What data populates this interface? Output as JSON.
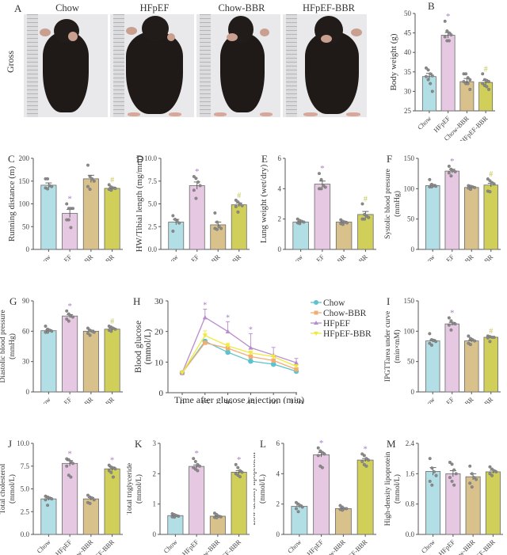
{
  "colors": {
    "Chow": "#b2dfe6",
    "HFpEF": "#e6c8e2",
    "Chow-BBR": "#d9c18c",
    "HFpEF-BBR": "#cfcf5a",
    "axis": "#555555",
    "star": "#a77ec4",
    "hash": "#c6c65a",
    "line_Chow": "#5bc2cf",
    "line_Chow-BBR": "#f2ad72",
    "line_HFpEF": "#b98ccc",
    "line_HFpEF-BBR": "#f0ea3c"
  },
  "panelA": {
    "letter": "A",
    "row_label": "Gross",
    "groups": [
      "Chow",
      "HFpEF",
      "Chow-BBR",
      "HFpEF-BBR"
    ]
  },
  "chart_data": [
    {
      "id": "B",
      "type": "bar",
      "letter": "B",
      "categories": [
        "Chow",
        "HFpEF",
        "Chow-BBR",
        "HFpEF-BBR"
      ],
      "values": [
        33.8,
        44.4,
        32.5,
        32.3
      ],
      "errors": [
        0.8,
        0.7,
        0.8,
        0.5
      ],
      "points": [
        [
          36,
          35.5,
          34.5,
          34,
          33.8,
          33,
          32,
          30
        ],
        [
          48,
          45.5,
          45,
          44.5,
          44,
          43,
          43
        ],
        [
          34.5,
          34.5,
          33.5,
          33,
          32.5,
          32,
          32,
          30.5
        ],
        [
          34.5,
          33,
          32.8,
          32.5,
          32,
          31.5,
          31.2,
          30.5
        ]
      ],
      "marks": [
        "",
        "*",
        "",
        "#"
      ],
      "ylabel": "Body weight (g)",
      "ylim": [
        25,
        50
      ],
      "yticks": [
        "25",
        "30",
        "35",
        "40",
        "45",
        "50"
      ]
    },
    {
      "id": "C",
      "type": "bar",
      "letter": "C",
      "categories": [
        "Chow",
        "HFpEF",
        "Chow-BBR",
        "HFpEF-BBR"
      ],
      "values": [
        141,
        79,
        155,
        134
      ],
      "errors": [
        5,
        9,
        8,
        3
      ],
      "points": [
        [
          155,
          155,
          140,
          138,
          135,
          133
        ],
        [
          100,
          90,
          90,
          90,
          65,
          65,
          48
        ],
        [
          185,
          160,
          155,
          150,
          138,
          132
        ],
        [
          142,
          137,
          135,
          134,
          132,
          130
        ]
      ],
      "marks": [
        "",
        "*",
        "",
        "#"
      ],
      "ylabel": "Running distance (m)",
      "ylim": [
        0,
        200
      ],
      "yticks": [
        "0",
        "50",
        "100",
        "150",
        "200"
      ]
    },
    {
      "id": "D",
      "type": "bar",
      "letter": "D",
      "categories": [
        "Chow",
        "HFpEF",
        "Chow-BBR",
        "HFpEF-BBR"
      ],
      "values": [
        3.0,
        7.0,
        2.7,
        4.9
      ],
      "errors": [
        0.3,
        0.4,
        0.3,
        0.2
      ],
      "points": [
        [
          3.7,
          3.3,
          3.1,
          2.9,
          2.0
        ],
        [
          8.0,
          7.8,
          7.4,
          7.0,
          6.5,
          5.6
        ],
        [
          4.0,
          3.0,
          2.5,
          2.3,
          2.3,
          2.2
        ],
        [
          5.4,
          5.2,
          5.0,
          4.8,
          4.7,
          4.1
        ]
      ],
      "marks": [
        "",
        "*",
        "",
        "#"
      ],
      "ylabel": "HW/Tibial length (mg/mm)",
      "ylim": [
        0,
        10
      ],
      "yticks": [
        "0.0",
        "2.5",
        "5.0",
        "7.5",
        "10.0"
      ]
    },
    {
      "id": "E",
      "type": "bar",
      "letter": "E",
      "categories": [
        "Chow",
        "HFpEF",
        "Chow-BBR",
        "HFpEF-BBR"
      ],
      "values": [
        1.8,
        4.3,
        1.8,
        2.3
      ],
      "errors": [
        0.05,
        0.2,
        0.05,
        0.2
      ],
      "points": [
        [
          2.0,
          1.9,
          1.85,
          1.8,
          1.75,
          1.7
        ],
        [
          5.0,
          4.6,
          4.2,
          4.1,
          4.0,
          4.0
        ],
        [
          1.95,
          1.85,
          1.8,
          1.75,
          1.7,
          1.65
        ],
        [
          3.0,
          2.3,
          2.2,
          2.1,
          2.0,
          2.0
        ]
      ],
      "marks": [
        "",
        "*",
        "",
        "#"
      ],
      "ylabel": "Lung weight (wet/dry)",
      "ylim": [
        0,
        6
      ],
      "yticks": [
        "0",
        "2",
        "4",
        "6"
      ]
    },
    {
      "id": "F",
      "type": "bar",
      "letter": "F",
      "categories": [
        "Chow",
        "HFpEF",
        "Chow-BBR",
        "HFpEF-BBR"
      ],
      "values": [
        105,
        129,
        102,
        106
      ],
      "errors": [
        2,
        3,
        1.5,
        3
      ],
      "points": [
        [
          115,
          107,
          105,
          104,
          103,
          103
        ],
        [
          137,
          132,
          130,
          128,
          126,
          121
        ],
        [
          105,
          104,
          103,
          102,
          101,
          99
        ],
        [
          116,
          113,
          110,
          108,
          96,
          95
        ]
      ],
      "marks": [
        "",
        "*",
        "",
        "#"
      ],
      "ylabel": "Systolic blood pressure (mmHg)",
      "ylim": [
        0,
        150
      ],
      "yticks": [
        "0",
        "50",
        "100",
        "150"
      ]
    },
    {
      "id": "G",
      "type": "bar",
      "letter": "G",
      "categories": [
        "Chow",
        "HFpEF",
        "Chow-BBR",
        "HFpEF-BBR"
      ],
      "values": [
        60.5,
        75,
        60,
        62
      ],
      "errors": [
        1,
        1.5,
        1,
        1
      ],
      "points": [
        [
          65,
          62,
          61,
          60,
          59,
          59
        ],
        [
          80,
          77,
          75,
          74,
          72,
          70
        ],
        [
          63,
          61,
          60,
          59,
          58,
          56
        ],
        [
          65,
          64,
          63,
          62,
          61,
          60
        ]
      ],
      "marks": [
        "",
        "*",
        "",
        "#"
      ],
      "ylabel": "Diastolic blood pressure (mmHg)",
      "ylim": [
        0,
        90
      ],
      "yticks": [
        "0",
        "30",
        "60",
        "90"
      ]
    },
    {
      "id": "H",
      "type": "line",
      "letter": "H",
      "x": [
        "0",
        "15",
        "30",
        "45",
        "60",
        "120"
      ],
      "series": [
        {
          "name": "Chow",
          "values": [
            6.5,
            16.8,
            13.2,
            10.3,
            9.3,
            7.0
          ],
          "errors": [
            0,
            0.5,
            0.8,
            0.4,
            0.6,
            0.3
          ],
          "marker": "circle"
        },
        {
          "name": "Chow-BBR",
          "values": [
            6.5,
            16.3,
            14.5,
            11.8,
            10.5,
            7.6
          ],
          "errors": [
            0,
            0.5,
            0.6,
            0.5,
            0.5,
            0.3
          ],
          "marker": "square"
        },
        {
          "name": "HFpEF",
          "values": [
            6.5,
            24.6,
            20.0,
            14.7,
            12.3,
            9.8
          ],
          "errors": [
            0,
            2.7,
            3.2,
            4.6,
            2.5,
            1.4
          ],
          "marker": "triangle"
        },
        {
          "name": "HFpEF-BBR",
          "values": [
            6.5,
            18.7,
            15.3,
            13.0,
            11.8,
            8.6
          ],
          "errors": [
            0,
            1.5,
            0.8,
            0.6,
            0.6,
            0.4
          ],
          "marker": "triangle-down"
        }
      ],
      "star_positions": [
        1,
        2,
        3
      ],
      "xlabel": "Time after glucose injection (min)",
      "ylabel": "Blood glucose (mmol/L)",
      "ylim": [
        0,
        30
      ],
      "yticks": [
        "0",
        "10",
        "20",
        "30"
      ],
      "legend": "top-right"
    },
    {
      "id": "I",
      "type": "bar",
      "letter": "I",
      "categories": [
        "Chow",
        "HFpEF",
        "Chow-BBR",
        "HFpEF-BBR"
      ],
      "values": [
        84,
        112,
        84,
        90
      ],
      "errors": [
        2,
        2.5,
        1.5,
        1
      ],
      "points": [
        [
          96,
          86,
          85,
          83,
          80,
          77
        ],
        [
          122,
          117,
          113,
          112,
          110,
          102
        ],
        [
          92,
          88,
          86,
          84,
          80,
          78
        ],
        [
          92,
          91,
          90,
          90,
          89,
          83
        ]
      ],
      "marks": [
        "",
        "*",
        "",
        "#"
      ],
      "ylabel": "IPGTTarea under curve (min×mM)",
      "ylim": [
        0,
        150
      ],
      "yticks": [
        "0",
        "50",
        "100",
        "150"
      ]
    },
    {
      "id": "J",
      "type": "bar",
      "letter": "J",
      "categories": [
        "Chow",
        "HFpEF",
        "Chow-BBR",
        "HFpEF-BBR"
      ],
      "values": [
        3.9,
        7.8,
        3.9,
        7.2
      ],
      "errors": [
        0.15,
        0.3,
        0.15,
        0.2
      ],
      "points": [
        [
          4.2,
          4.1,
          4.0,
          3.9,
          3.8,
          3.2
        ],
        [
          8.3,
          8.2,
          8.0,
          7.8,
          7.5,
          6.5,
          6.3
        ],
        [
          4.3,
          4.1,
          4.0,
          3.8,
          3.5,
          3.4
        ],
        [
          7.6,
          7.4,
          7.3,
          7.2,
          7.0,
          6.8,
          6.3
        ]
      ],
      "marks": [
        "",
        "*",
        "",
        "*"
      ],
      "ylabel": "Total cholesterol (mmol/L)",
      "ylim": [
        0,
        10
      ],
      "yticks": [
        "0.0",
        "2.5",
        "5.0",
        "7.5",
        "10.0"
      ]
    },
    {
      "id": "K",
      "type": "bar",
      "letter": "K",
      "categories": [
        "Chow",
        "HFpEF",
        "Chow-BBR",
        "HFpEF-BBR"
      ],
      "values": [
        0.62,
        2.24,
        0.6,
        2.05
      ],
      "errors": [
        0.02,
        0.05,
        0.02,
        0.05
      ],
      "points": [
        [
          0.68,
          0.65,
          0.62,
          0.6,
          0.58,
          0.57
        ],
        [
          2.5,
          2.4,
          2.3,
          2.25,
          2.2,
          2.15,
          2.1
        ],
        [
          0.7,
          0.65,
          0.6,
          0.58,
          0.56,
          0.55
        ],
        [
          2.3,
          2.2,
          2.1,
          2.05,
          2.0,
          1.95,
          1.9
        ]
      ],
      "marks": [
        "",
        "*",
        "",
        "*"
      ],
      "ylabel": "Total triglyceride (mmol/L)",
      "ylim": [
        0,
        3
      ],
      "yticks": [
        "0",
        "1",
        "2",
        "3"
      ]
    },
    {
      "id": "L",
      "type": "bar",
      "letter": "L",
      "categories": [
        "Chow",
        "HFpEF",
        "Chow-BBR",
        "HFpEF-BBR"
      ],
      "values": [
        1.85,
        5.25,
        1.7,
        4.9
      ],
      "errors": [
        0.08,
        0.15,
        0.05,
        0.1
      ],
      "points": [
        [
          2.1,
          2.0,
          1.9,
          1.8,
          1.7,
          1.5
        ],
        [
          5.7,
          5.5,
          5.4,
          5.3,
          5.2,
          4.5,
          4.4
        ],
        [
          1.9,
          1.8,
          1.7,
          1.7,
          1.65,
          1.6
        ],
        [
          5.3,
          5.2,
          5.0,
          4.9,
          4.8,
          4.6,
          4.5
        ]
      ],
      "marks": [
        "",
        "*",
        "",
        "*"
      ],
      "ylabel": "Low-density lipoprotein (mmol/L)",
      "ylim": [
        0,
        6
      ],
      "yticks": [
        "0",
        "2",
        "4",
        "6"
      ]
    },
    {
      "id": "M",
      "type": "bar",
      "letter": "M",
      "categories": [
        "Chow",
        "HFpEF",
        "Chow-BBR",
        "HFpEF-BBR"
      ],
      "values": [
        1.66,
        1.6,
        1.52,
        1.65
      ],
      "errors": [
        0.1,
        0.08,
        0.08,
        0.04
      ],
      "points": [
        [
          2.0,
          1.75,
          1.65,
          1.55,
          1.4,
          1.3
        ],
        [
          1.9,
          1.85,
          1.7,
          1.6,
          1.5,
          1.4,
          1.3
        ],
        [
          1.8,
          1.6,
          1.5,
          1.45,
          1.35,
          1.25
        ],
        [
          1.78,
          1.72,
          1.68,
          1.65,
          1.6,
          1.55
        ]
      ],
      "marks": [
        "",
        "",
        "",
        ""
      ],
      "ylabel": "High-density lipoprotein (mmol/L)",
      "ylim": [
        0,
        2.4
      ],
      "yticks": [
        "0.0",
        "0.8",
        "1.6",
        "2.4"
      ]
    }
  ]
}
